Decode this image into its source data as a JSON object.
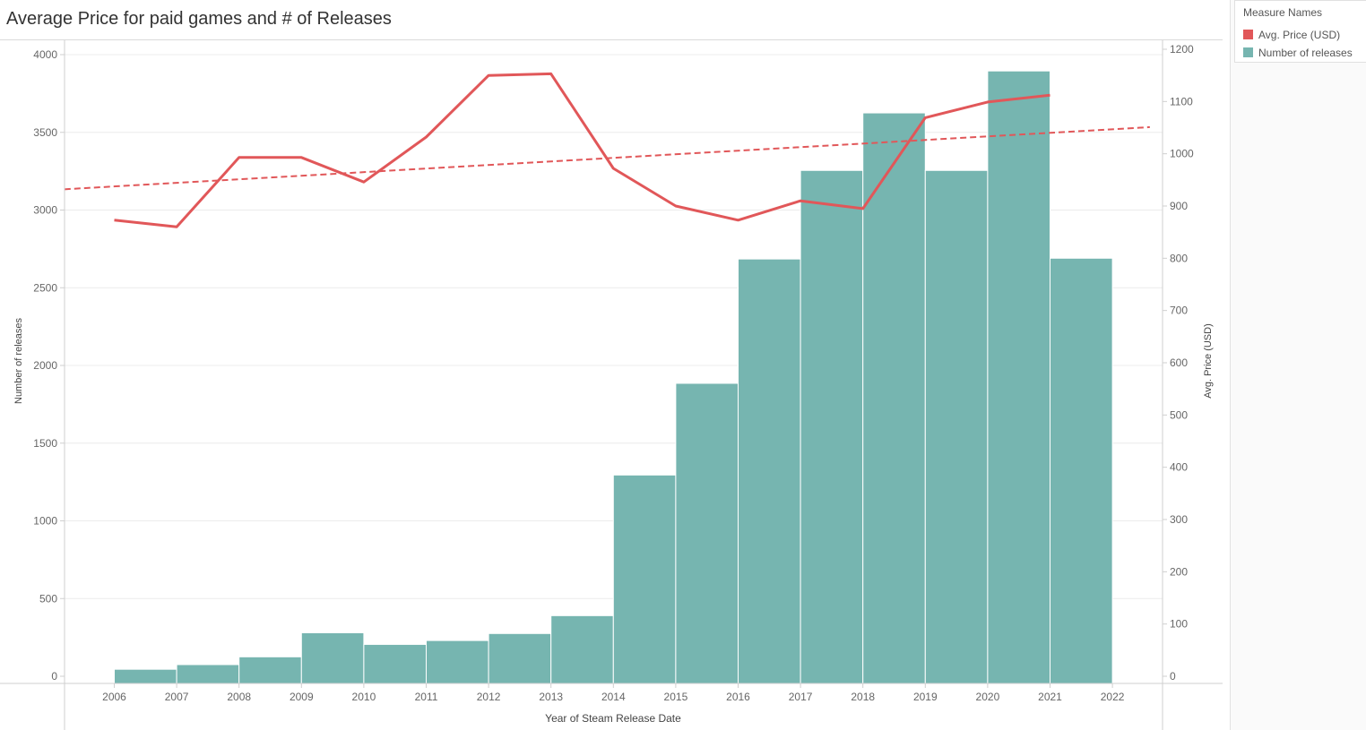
{
  "title": "Average Price for paid games and # of Releases",
  "legend": {
    "title": "Measure Names",
    "items": [
      {
        "label": "Avg. Price (USD)",
        "color": "#e15759"
      },
      {
        "label": "Number of releases",
        "color": "#76b5b0"
      }
    ]
  },
  "chart_data": {
    "type": "bar",
    "title": "Average Price for paid games and # of Releases",
    "xlabel": "Year of Steam Release Date",
    "ylabel": "Number of releases",
    "y2label": "Avg. Price (USD)",
    "categories": [
      "2006",
      "2007",
      "2008",
      "2009",
      "2010",
      "2011",
      "2012",
      "2013",
      "2014",
      "2015",
      "2016",
      "2017",
      "2018",
      "2019",
      "2020",
      "2021",
      "2022"
    ],
    "ylim": [
      0,
      4000
    ],
    "y2lim": [
      0,
      1200
    ],
    "yticks": [
      0,
      500,
      1000,
      1500,
      2000,
      2500,
      3000,
      3500,
      4000
    ],
    "y2ticks": [
      0,
      100,
      200,
      300,
      400,
      500,
      600,
      700,
      800,
      900,
      1000,
      1100,
      1200
    ],
    "grid": true,
    "legend_position": "right",
    "series": [
      {
        "name": "Number of releases",
        "type": "bar",
        "axis": "left",
        "color": "#76b5b0",
        "x": [
          "2006",
          "2007",
          "2008",
          "2009",
          "2010",
          "2011",
          "2012",
          "2013",
          "2014",
          "2015",
          "2016",
          "2017",
          "2018",
          "2019",
          "2020",
          "2021"
        ],
        "values": [
          45,
          75,
          125,
          280,
          205,
          230,
          275,
          390,
          1295,
          1885,
          2685,
          3255,
          3625,
          3255,
          3895,
          2690
        ]
      },
      {
        "name": "Avg. Price (USD)",
        "type": "line",
        "axis": "right",
        "color": "#e15759",
        "x": [
          "2006",
          "2007",
          "2008",
          "2009",
          "2010",
          "2011",
          "2012",
          "2013",
          "2014",
          "2015",
          "2016",
          "2017",
          "2018",
          "2019",
          "2020",
          "2021"
        ],
        "values": [
          873,
          860,
          993,
          993,
          946,
          1032,
          1150,
          1153,
          972,
          900,
          873,
          910,
          895,
          1069,
          1099,
          1112
        ]
      }
    ],
    "trend_line": {
      "series": "Avg. Price (USD)",
      "axis": "right",
      "style": "dashed",
      "color": "#e15759",
      "from": {
        "x": 2005.2,
        "y": 932
      },
      "to": {
        "x": 2022.6,
        "y": 1051
      }
    }
  }
}
